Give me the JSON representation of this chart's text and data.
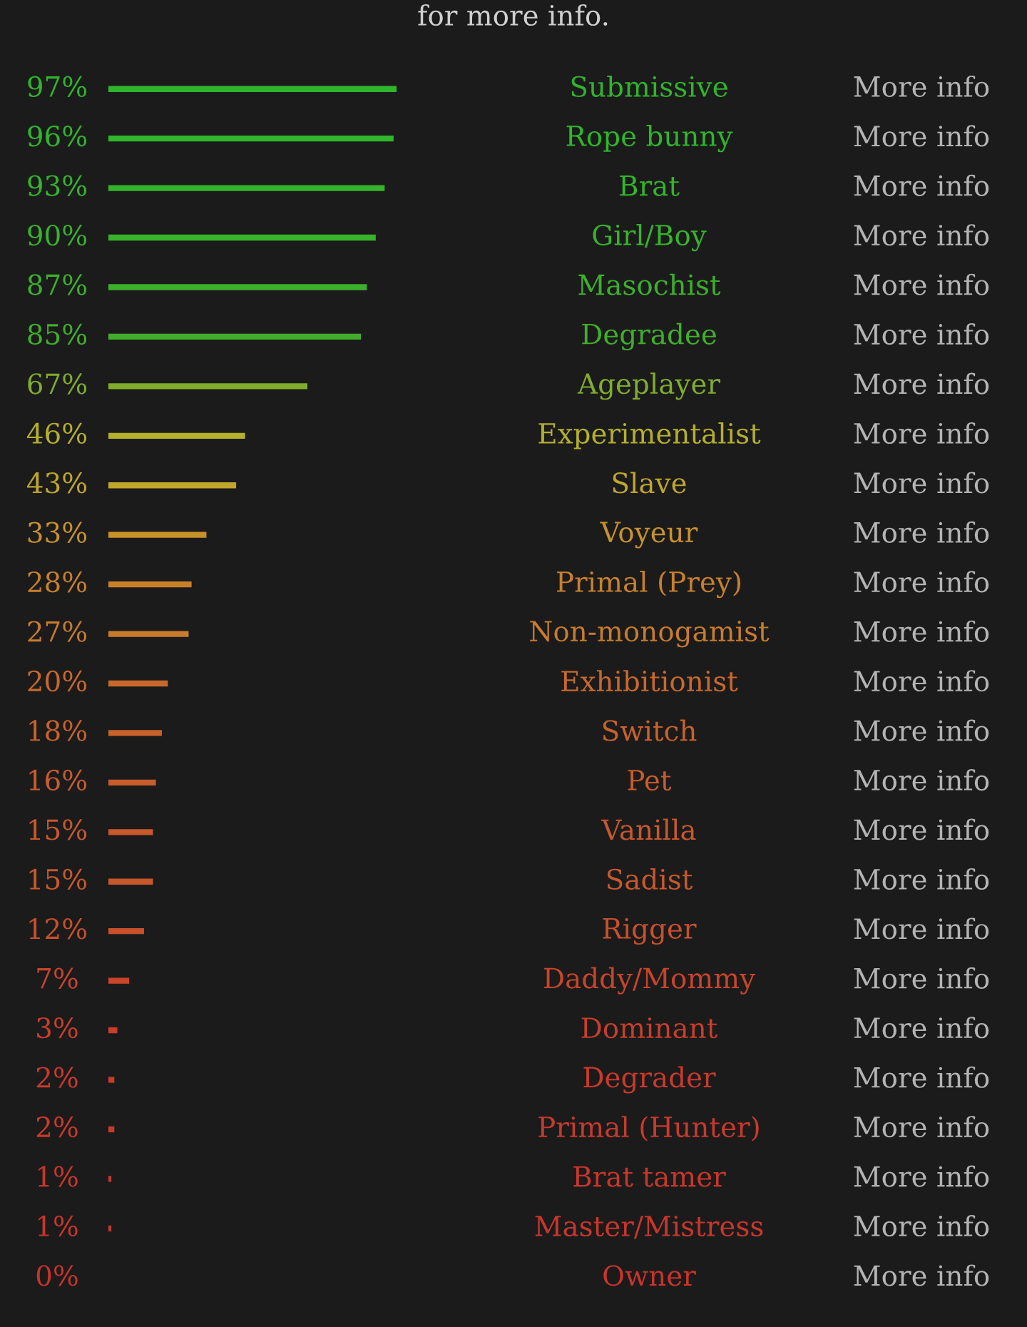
{
  "chart_data": {
    "type": "bar",
    "orientation": "horizontal",
    "title": "for more info.",
    "categories": [
      "Submissive",
      "Rope bunny",
      "Brat",
      "Girl/Boy",
      "Masochist",
      "Degradee",
      "Ageplayer",
      "Experimentalist",
      "Slave",
      "Voyeur",
      "Primal (Prey)",
      "Non-monogamist",
      "Exhibitionist",
      "Switch",
      "Pet",
      "Vanilla",
      "Sadist",
      "Rigger",
      "Daddy/Mommy",
      "Dominant",
      "Degrader",
      "Primal (Hunter)",
      "Brat tamer",
      "Master/Mistress",
      "Owner"
    ],
    "values": [
      97,
      96,
      93,
      90,
      87,
      85,
      67,
      46,
      43,
      33,
      28,
      27,
      20,
      18,
      16,
      15,
      15,
      12,
      7,
      3,
      2,
      2,
      1,
      1,
      0
    ],
    "colors": [
      "#2fb52b",
      "#30b52b",
      "#34b42b",
      "#38b22b",
      "#3cb02b",
      "#40ae2b",
      "#80ad2b",
      "#b5b02b",
      "#c0a62b",
      "#c8922b",
      "#c8802b",
      "#c87c2b",
      "#c8682b",
      "#c8622b",
      "#c85c2b",
      "#c8582b",
      "#c8582b",
      "#c8502b",
      "#c8442b",
      "#c83e2b",
      "#c83a2b",
      "#c83a2b",
      "#c8362b",
      "#c8362b",
      "#c8342b"
    ],
    "value_labels": [
      "97%",
      "96%",
      "93%",
      "90%",
      "87%",
      "85%",
      "67%",
      "46%",
      "43%",
      "33%",
      "28%",
      "27%",
      "20%",
      "18%",
      "16%",
      "15%",
      "15%",
      "12%",
      "7%",
      "3%",
      "2%",
      "2%",
      "1%",
      "1%",
      "0%"
    ],
    "annotations": [
      "More info",
      "More info",
      "More info",
      "More info",
      "More info",
      "More info",
      "More info",
      "More info",
      "More info",
      "More info",
      "More info",
      "More info",
      "More info",
      "More info",
      "More info",
      "More info",
      "More info",
      "More info",
      "More info",
      "More info",
      "More info",
      "More info",
      "More info",
      "More info",
      "More info"
    ]
  }
}
